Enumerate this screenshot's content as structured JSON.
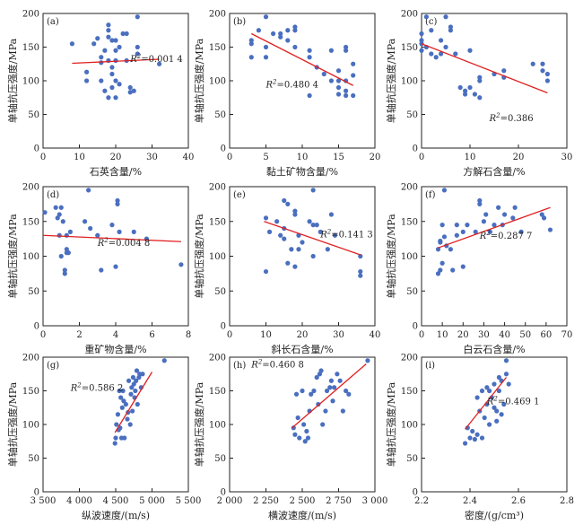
{
  "chart_data": [
    {
      "id": "a",
      "type": "scatter",
      "tag": "(a)",
      "xlabel": "石英含量/%",
      "ylabel": "单轴抗压强度/MPa",
      "xlim": [
        0,
        40
      ],
      "ylim": [
        0,
        200
      ],
      "xticks": [
        0,
        10,
        20,
        30,
        40
      ],
      "yticks": [
        0,
        50,
        100,
        150,
        200
      ],
      "r2": "0.001 4",
      "fit": {
        "x1": 8,
        "y1": 126,
        "x2": 32,
        "y2": 132
      },
      "points": [
        [
          8,
          155
        ],
        [
          12,
          113
        ],
        [
          12,
          100
        ],
        [
          14,
          155
        ],
        [
          15,
          163
        ],
        [
          16,
          135
        ],
        [
          16,
          127
        ],
        [
          16,
          100
        ],
        [
          17,
          145
        ],
        [
          17,
          85
        ],
        [
          18,
          183
        ],
        [
          18,
          175
        ],
        [
          18,
          165
        ],
        [
          18,
          130
        ],
        [
          18,
          75
        ],
        [
          19,
          160
        ],
        [
          19,
          120
        ],
        [
          19,
          110
        ],
        [
          19,
          90
        ],
        [
          20,
          160
        ],
        [
          20,
          145
        ],
        [
          20,
          130
        ],
        [
          20,
          100
        ],
        [
          20,
          75
        ],
        [
          21,
          150
        ],
        [
          21,
          95
        ],
        [
          22,
          170
        ],
        [
          23,
          170
        ],
        [
          23,
          130
        ],
        [
          24,
          90
        ],
        [
          24,
          83
        ],
        [
          25,
          85
        ],
        [
          26,
          195
        ],
        [
          26,
          150
        ],
        [
          26,
          140
        ],
        [
          32,
          125
        ]
      ]
    },
    {
      "id": "b",
      "type": "scatter",
      "tag": "(b)",
      "xlabel": "黏土矿物含量/%",
      "ylabel": "单轴抗压强度/MPa",
      "xlim": [
        0,
        20
      ],
      "ylim": [
        0,
        200
      ],
      "xticks": [
        0,
        5,
        10,
        15,
        20
      ],
      "yticks": [
        0,
        50,
        100,
        150,
        200
      ],
      "r2": "0.480 4",
      "fit": {
        "x1": 3,
        "y1": 170,
        "x2": 17,
        "y2": 93
      },
      "points": [
        [
          3,
          160
        ],
        [
          3,
          155
        ],
        [
          3,
          135
        ],
        [
          4,
          175
        ],
        [
          5,
          195
        ],
        [
          5,
          150
        ],
        [
          5,
          135
        ],
        [
          6,
          170
        ],
        [
          7,
          165
        ],
        [
          7,
          170
        ],
        [
          8,
          175
        ],
        [
          8,
          160
        ],
        [
          9,
          180
        ],
        [
          9,
          175
        ],
        [
          9,
          150
        ],
        [
          11,
          145
        ],
        [
          11,
          78
        ],
        [
          11,
          135
        ],
        [
          12,
          120
        ],
        [
          13,
          110
        ],
        [
          14,
          100
        ],
        [
          14,
          145
        ],
        [
          15,
          115
        ],
        [
          15,
          100
        ],
        [
          15,
          90
        ],
        [
          15,
          80
        ],
        [
          16,
          150
        ],
        [
          16,
          145
        ],
        [
          16,
          100
        ],
        [
          16,
          85
        ],
        [
          16,
          78
        ],
        [
          17,
          125
        ],
        [
          17,
          108
        ],
        [
          17,
          78
        ]
      ]
    },
    {
      "id": "c",
      "type": "scatter",
      "tag": "(c)",
      "xlabel": "方解石含量/%",
      "ylabel": "单轴抗压强度/MPa",
      "xlim": [
        0,
        30
      ],
      "ylim": [
        0,
        200
      ],
      "xticks": [
        0,
        10,
        20,
        30
      ],
      "yticks": [
        0,
        50,
        100,
        150,
        200
      ],
      "r2": "0.386",
      "fit": {
        "x1": 0,
        "y1": 155,
        "x2": 26,
        "y2": 82
      },
      "points": [
        [
          0,
          170
        ],
        [
          0,
          160
        ],
        [
          0,
          155
        ],
        [
          0,
          145
        ],
        [
          1,
          195
        ],
        [
          1,
          150
        ],
        [
          2,
          175
        ],
        [
          2,
          140
        ],
        [
          3,
          135
        ],
        [
          4,
          160
        ],
        [
          4,
          140
        ],
        [
          5,
          150
        ],
        [
          5,
          195
        ],
        [
          6,
          180
        ],
        [
          6,
          175
        ],
        [
          7,
          140
        ],
        [
          8,
          90
        ],
        [
          9,
          85
        ],
        [
          9,
          80
        ],
        [
          10,
          145
        ],
        [
          10,
          90
        ],
        [
          11,
          80
        ],
        [
          12,
          105
        ],
        [
          12,
          100
        ],
        [
          12,
          75
        ],
        [
          15,
          110
        ],
        [
          17,
          115
        ],
        [
          17,
          105
        ],
        [
          23,
          125
        ],
        [
          25,
          125
        ],
        [
          25,
          115
        ],
        [
          26,
          110
        ],
        [
          26,
          100
        ]
      ]
    },
    {
      "id": "d",
      "type": "scatter",
      "tag": "(d)",
      "xlabel": "重矿物含量/%",
      "ylabel": "单轴抗压强度/MPa",
      "xlim": [
        0,
        8
      ],
      "ylim": [
        0,
        200
      ],
      "xticks": [
        0,
        2,
        4,
        6,
        8
      ],
      "yticks": [
        0,
        50,
        100,
        150,
        200
      ],
      "r2": "0.004 8",
      "fit": {
        "x1": 0,
        "y1": 130,
        "x2": 7.6,
        "y2": 121
      },
      "points": [
        [
          0.1,
          163
        ],
        [
          0.7,
          170
        ],
        [
          0.8,
          155
        ],
        [
          0.9,
          160
        ],
        [
          0.9,
          130
        ],
        [
          1.0,
          100
        ],
        [
          1.0,
          170
        ],
        [
          1.1,
          150
        ],
        [
          1.2,
          80
        ],
        [
          1.2,
          75
        ],
        [
          1.3,
          105
        ],
        [
          1.3,
          110
        ],
        [
          1.3,
          130
        ],
        [
          1.4,
          105
        ],
        [
          1.5,
          135
        ],
        [
          2.3,
          150
        ],
        [
          2.5,
          195
        ],
        [
          2.6,
          140
        ],
        [
          3.0,
          130
        ],
        [
          3.2,
          80
        ],
        [
          3.8,
          145
        ],
        [
          4.0,
          85
        ],
        [
          4.1,
          180
        ],
        [
          4.1,
          175
        ],
        [
          4.2,
          135
        ],
        [
          5.0,
          135
        ],
        [
          5.7,
          125
        ],
        [
          7.6,
          88
        ]
      ]
    },
    {
      "id": "e",
      "type": "scatter",
      "tag": "(e)",
      "xlabel": "斜长石含量/%",
      "ylabel": "单轴抗压强度/MPa",
      "xlim": [
        0,
        40
      ],
      "ylim": [
        0,
        200
      ],
      "xticks": [
        0,
        10,
        20,
        30,
        40
      ],
      "yticks": [
        0,
        50,
        100,
        150,
        200
      ],
      "r2": "0.141 3",
      "fit": {
        "x1": 9.5,
        "y1": 150,
        "x2": 36,
        "y2": 102
      },
      "points": [
        [
          10,
          155
        ],
        [
          10,
          78
        ],
        [
          11,
          135
        ],
        [
          13,
          150
        ],
        [
          14,
          130
        ],
        [
          15,
          180
        ],
        [
          15,
          140
        ],
        [
          15,
          125
        ],
        [
          16,
          175
        ],
        [
          16,
          90
        ],
        [
          17,
          110
        ],
        [
          18,
          165
        ],
        [
          18,
          160
        ],
        [
          18,
          85
        ],
        [
          19,
          130
        ],
        [
          19,
          110
        ],
        [
          20,
          120
        ],
        [
          22,
          150
        ],
        [
          23,
          195
        ],
        [
          23,
          145
        ],
        [
          23,
          100
        ],
        [
          24,
          145
        ],
        [
          25,
          135
        ],
        [
          27,
          110
        ],
        [
          28,
          160
        ],
        [
          29,
          130
        ],
        [
          36,
          100
        ],
        [
          36,
          78
        ],
        [
          36,
          72
        ]
      ]
    },
    {
      "id": "f",
      "type": "scatter",
      "tag": "(f)",
      "xlabel": "白云石含量/%",
      "ylabel": "单轴抗压强度/MPa",
      "xlim": [
        0,
        70
      ],
      "ylim": [
        0,
        200
      ],
      "xticks": [
        0,
        10,
        20,
        30,
        40,
        50,
        60,
        70
      ],
      "yticks": [
        0,
        50,
        100,
        150,
        200
      ],
      "r2": "0.287 7",
      "fit": {
        "x1": 8,
        "y1": 112,
        "x2": 62,
        "y2": 170
      },
      "points": [
        [
          8,
          110
        ],
        [
          8,
          75
        ],
        [
          9,
          122
        ],
        [
          9,
          120
        ],
        [
          9,
          80
        ],
        [
          10,
          90
        ],
        [
          10,
          145
        ],
        [
          11,
          195
        ],
        [
          11,
          128
        ],
        [
          12,
          115
        ],
        [
          14,
          110
        ],
        [
          15,
          80
        ],
        [
          17,
          145
        ],
        [
          17,
          130
        ],
        [
          20,
          135
        ],
        [
          20,
          85
        ],
        [
          22,
          145
        ],
        [
          26,
          135
        ],
        [
          28,
          180
        ],
        [
          28,
          175
        ],
        [
          30,
          150
        ],
        [
          31,
          160
        ],
        [
          33,
          135
        ],
        [
          35,
          145
        ],
        [
          37,
          170
        ],
        [
          39,
          145
        ],
        [
          40,
          160
        ],
        [
          44,
          155
        ],
        [
          45,
          170
        ],
        [
          48,
          135
        ],
        [
          58,
          160
        ],
        [
          59,
          155
        ],
        [
          62,
          138
        ]
      ]
    },
    {
      "id": "g",
      "type": "scatter",
      "tag": "(g)",
      "xlabel": "纵波速度/(m/s)",
      "ylabel": "单轴抗压强度/MPa",
      "xlim": [
        3500,
        5500
      ],
      "ylim": [
        0,
        200
      ],
      "xticks": [
        3500,
        4000,
        4500,
        5000,
        5500
      ],
      "yticks": [
        0,
        50,
        100,
        150,
        200
      ],
      "xtick_labels": [
        "3 500",
        "4 000",
        "4 500",
        "5 000",
        "5 500"
      ],
      "r2": "0.586 2",
      "fit": {
        "x1": 4490,
        "y1": 88,
        "x2": 5000,
        "y2": 178
      },
      "points": [
        [
          4490,
          72
        ],
        [
          4500,
          80
        ],
        [
          4510,
          100
        ],
        [
          4530,
          115
        ],
        [
          4540,
          92
        ],
        [
          4550,
          150
        ],
        [
          4560,
          95
        ],
        [
          4570,
          140
        ],
        [
          4580,
          80
        ],
        [
          4590,
          125
        ],
        [
          4600,
          150
        ],
        [
          4610,
          135
        ],
        [
          4620,
          80
        ],
        [
          4640,
          130
        ],
        [
          4660,
          108
        ],
        [
          4670,
          118
        ],
        [
          4680,
          165
        ],
        [
          4700,
          100
        ],
        [
          4710,
          145
        ],
        [
          4720,
          155
        ],
        [
          4730,
          120
        ],
        [
          4740,
          170
        ],
        [
          4750,
          160
        ],
        [
          4760,
          140
        ],
        [
          4770,
          150
        ],
        [
          4780,
          165
        ],
        [
          4790,
          180
        ],
        [
          4800,
          130
        ],
        [
          4820,
          170
        ],
        [
          4830,
          175
        ],
        [
          4850,
          155
        ],
        [
          4870,
          175
        ],
        [
          5170,
          195
        ]
      ]
    },
    {
      "id": "h",
      "type": "scatter",
      "tag": "(h)",
      "xlabel": "横波速度/(m/s)",
      "ylabel": "单轴抗压强度/MPa",
      "xlim": [
        2000,
        3000
      ],
      "ylim": [
        0,
        200
      ],
      "xticks": [
        2000,
        2250,
        2500,
        2750,
        3000
      ],
      "yticks": [
        0,
        50,
        100,
        150,
        200
      ],
      "xtick_labels": [
        "2 000",
        "2 250",
        "2 500",
        "2 750",
        "3 000"
      ],
      "r2": "0.460 8",
      "fit": {
        "x1": 2430,
        "y1": 95,
        "x2": 2940,
        "y2": 190
      },
      "points": [
        [
          2440,
          95
        ],
        [
          2450,
          85
        ],
        [
          2460,
          145
        ],
        [
          2470,
          110
        ],
        [
          2480,
          80
        ],
        [
          2500,
          150
        ],
        [
          2510,
          100
        ],
        [
          2520,
          75
        ],
        [
          2530,
          90
        ],
        [
          2540,
          80
        ],
        [
          2550,
          120
        ],
        [
          2560,
          145
        ],
        [
          2580,
          150
        ],
        [
          2600,
          170
        ],
        [
          2610,
          130
        ],
        [
          2620,
          175
        ],
        [
          2630,
          180
        ],
        [
          2640,
          100
        ],
        [
          2660,
          120
        ],
        [
          2670,
          150
        ],
        [
          2690,
          155
        ],
        [
          2700,
          165
        ],
        [
          2710,
          135
        ],
        [
          2720,
          155
        ],
        [
          2740,
          175
        ],
        [
          2760,
          165
        ],
        [
          2780,
          120
        ],
        [
          2800,
          150
        ],
        [
          2820,
          145
        ],
        [
          2950,
          195
        ]
      ]
    },
    {
      "id": "i",
      "type": "scatter",
      "tag": "(i)",
      "xlabel": "密度/(g/cm³)",
      "ylabel": "单轴抗压强度/MPa",
      "xlim": [
        2.2,
        2.8
      ],
      "ylim": [
        0,
        200
      ],
      "xticks": [
        2.2,
        2.4,
        2.6,
        2.8
      ],
      "yticks": [
        0,
        50,
        100,
        150,
        200
      ],
      "xtick_labels": [
        "2.2",
        "2.4",
        "2.6",
        "2.8"
      ],
      "r2": "0.469 1",
      "fit": {
        "x1": 2.38,
        "y1": 93,
        "x2": 2.55,
        "y2": 170
      },
      "points": [
        [
          2.38,
          72
        ],
        [
          2.39,
          95
        ],
        [
          2.4,
          80
        ],
        [
          2.41,
          90
        ],
        [
          2.42,
          78
        ],
        [
          2.43,
          85
        ],
        [
          2.43,
          140
        ],
        [
          2.44,
          120
        ],
        [
          2.45,
          80
        ],
        [
          2.45,
          150
        ],
        [
          2.46,
          110
        ],
        [
          2.47,
          130
        ],
        [
          2.47,
          155
        ],
        [
          2.48,
          100
        ],
        [
          2.48,
          150
        ],
        [
          2.49,
          140
        ],
        [
          2.5,
          160
        ],
        [
          2.5,
          125
        ],
        [
          2.51,
          120
        ],
        [
          2.51,
          105
        ],
        [
          2.52,
          170
        ],
        [
          2.52,
          150
        ],
        [
          2.53,
          165
        ],
        [
          2.53,
          115
        ],
        [
          2.54,
          130
        ],
        [
          2.55,
          195
        ],
        [
          2.55,
          175
        ],
        [
          2.56,
          160
        ]
      ]
    }
  ]
}
